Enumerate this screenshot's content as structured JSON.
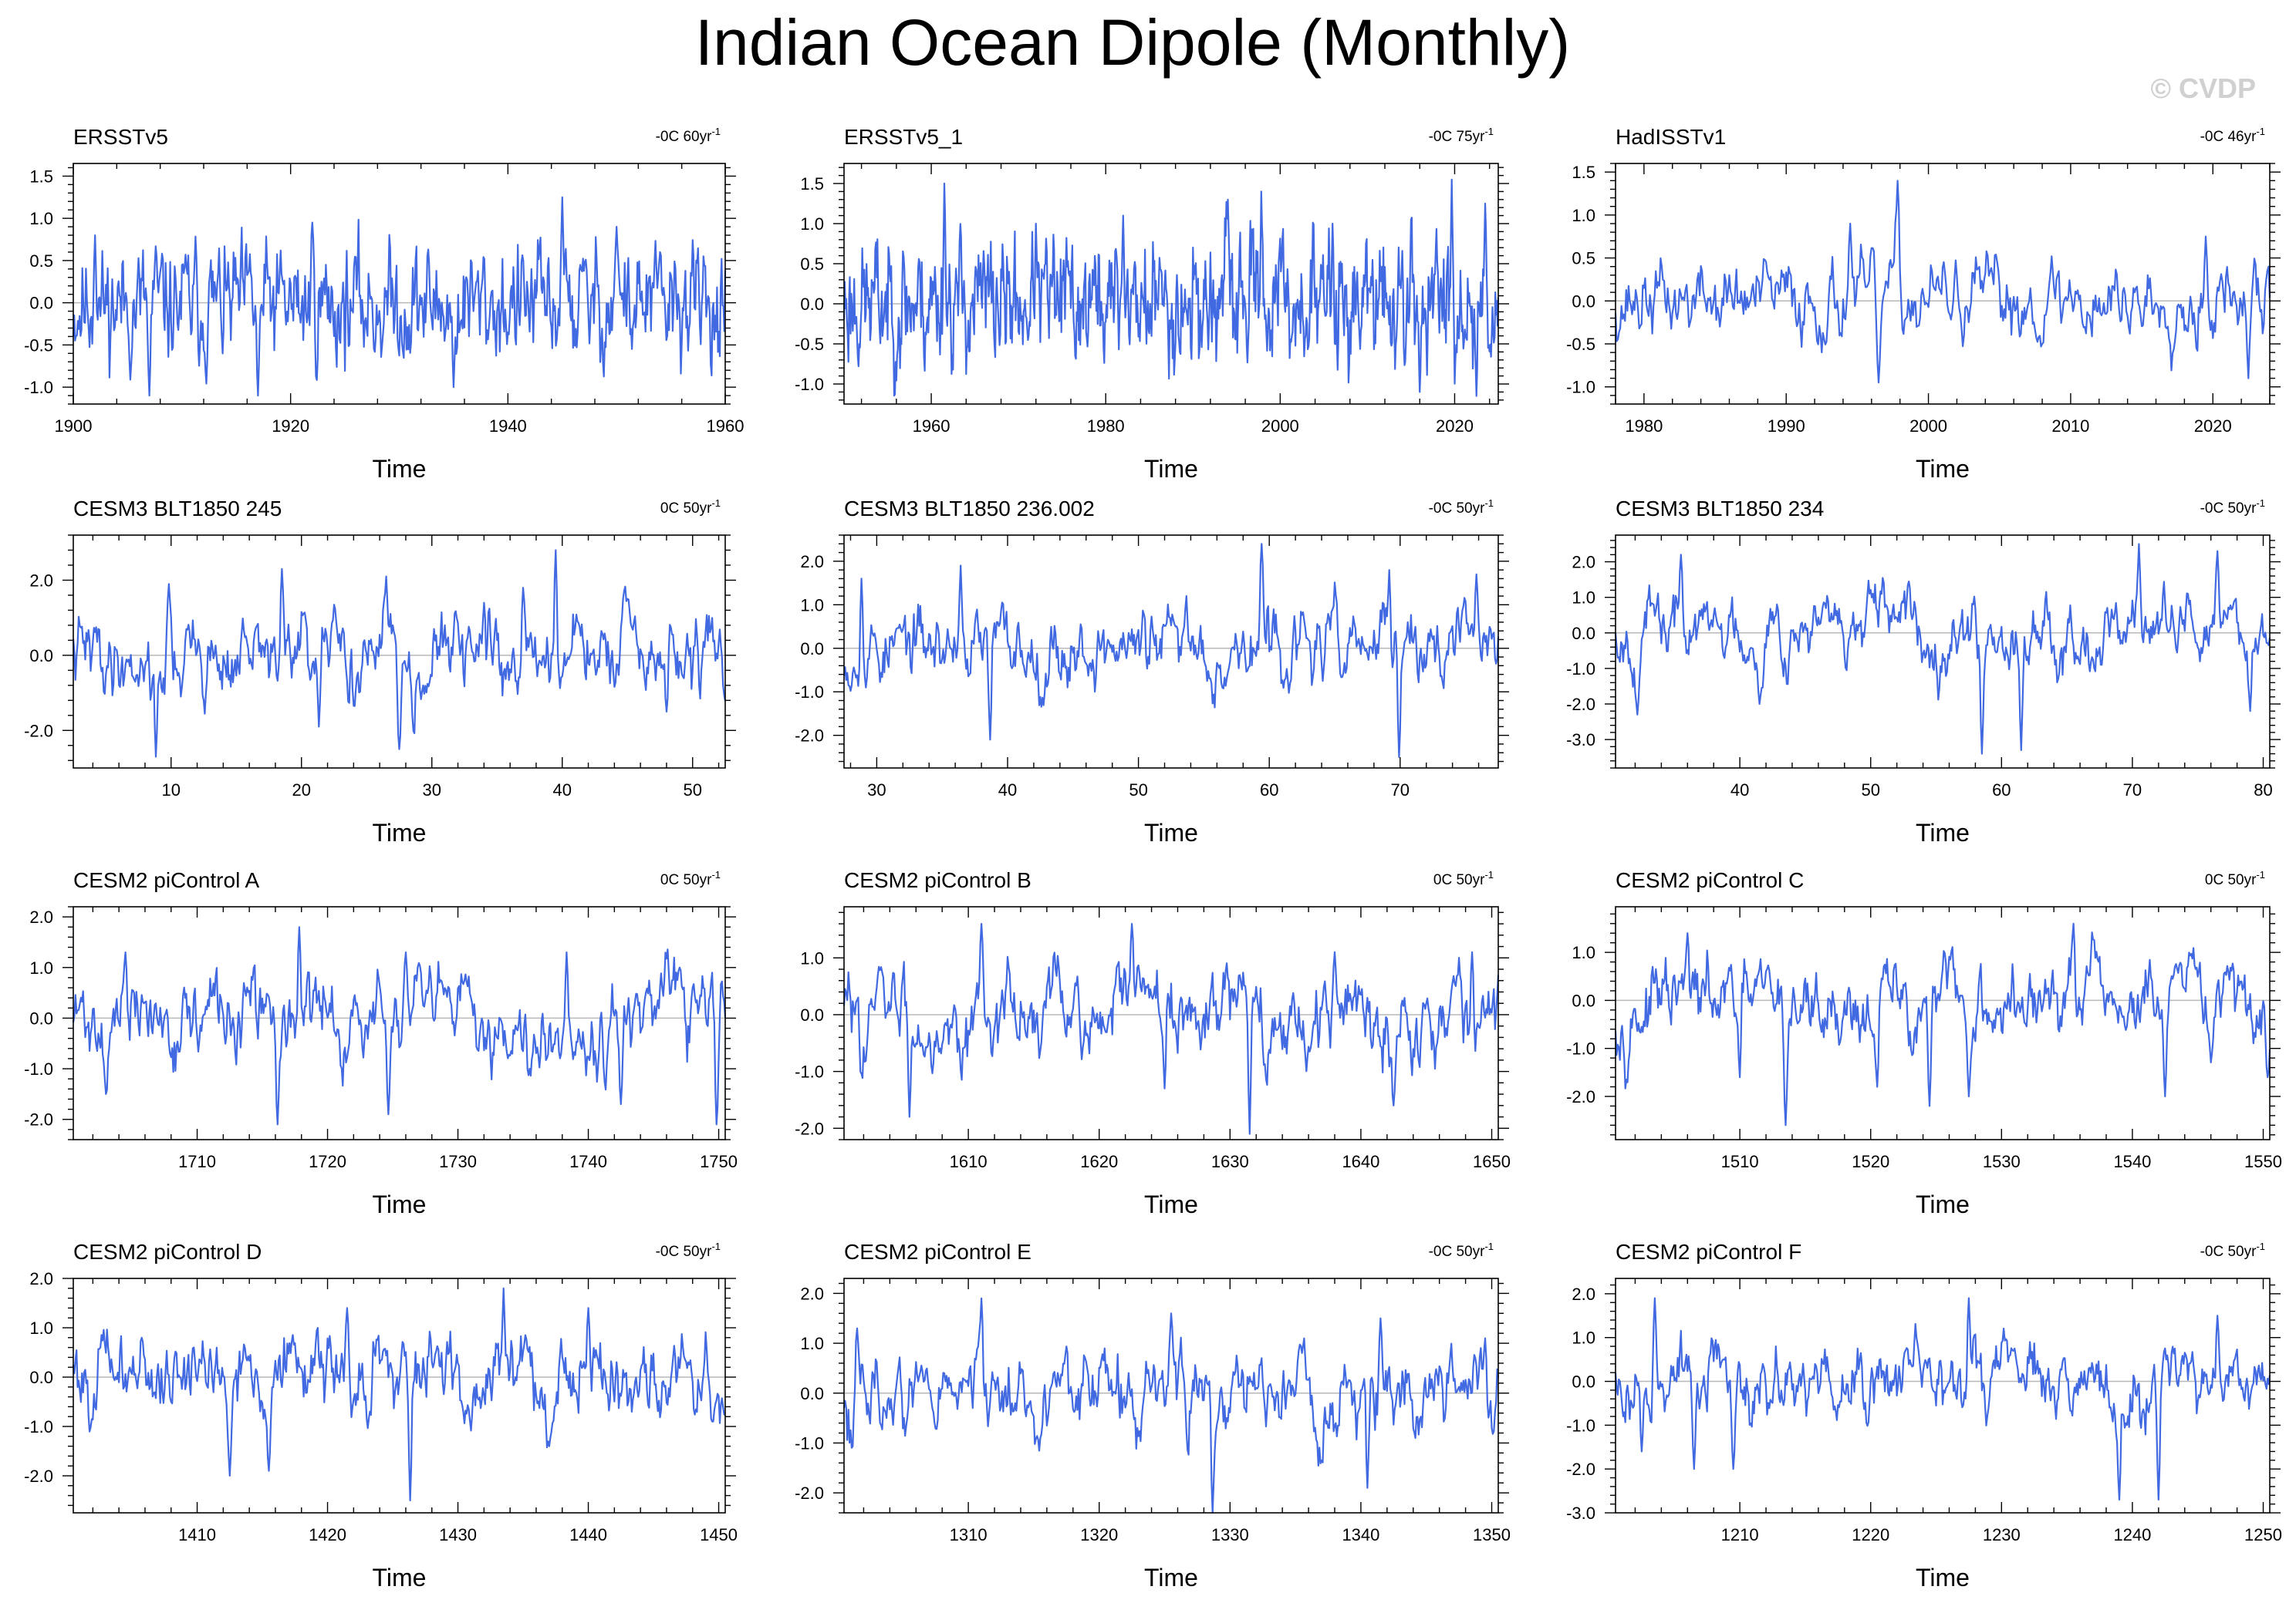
{
  "title": "Indian Ocean Dipole (Monthly)",
  "watermark": "© CVDP",
  "colors": {
    "line": "#4169e1",
    "axis": "#000000",
    "zero": "#b8b8b8",
    "watermark": "#d0d0d0"
  },
  "chart_data": [
    {
      "type": "line",
      "title": "ERSSTv5",
      "annotation": "-0C 60yr",
      "annotation_sup": "-1",
      "xlabel": "Time",
      "xlim": [
        1900,
        1960
      ],
      "xticks": [
        1900,
        1920,
        1940,
        1960
      ],
      "ylim": [
        -1.2,
        1.65
      ],
      "yticks": [
        -1.0,
        -0.5,
        0.0,
        0.5,
        1.0,
        1.5
      ],
      "ytick_labels": [
        "-1.0",
        "-0.5",
        "0.0",
        "0.5",
        "1.0",
        "1.5"
      ],
      "std": 0.35,
      "peaks": [
        [
          1902,
          0.8
        ],
        [
          1907,
          -1.1
        ],
        [
          1917,
          -1.1
        ],
        [
          1922,
          0.95
        ],
        [
          1935,
          -1.0
        ],
        [
          1945,
          1.25
        ],
        [
          1950,
          0.9
        ]
      ],
      "seed": 11,
      "smooth": 0.55
    },
    {
      "type": "line",
      "title": "ERSSTv5_1",
      "annotation": "-0C 75yr",
      "annotation_sup": "-1",
      "xlabel": "Time",
      "xlim": [
        1950,
        2025
      ],
      "xticks": [
        1960,
        1980,
        2000,
        2020
      ],
      "ylim": [
        -1.25,
        1.75
      ],
      "yticks": [
        -1.0,
        -0.5,
        0.0,
        0.5,
        1.0,
        1.5
      ],
      "ytick_labels": [
        "-1.0",
        "-0.5",
        "0.0",
        "0.5",
        "1.0",
        "1.5"
      ],
      "std": 0.4,
      "peaks": [
        [
          1961.5,
          1.5
        ],
        [
          1972,
          1.0
        ],
        [
          1982,
          1.1
        ],
        [
          1994,
          1.3
        ],
        [
          1997.8,
          1.4
        ],
        [
          2006,
          1.0
        ],
        [
          2016,
          -1.1
        ],
        [
          2019.7,
          1.55
        ],
        [
          2023.5,
          1.25
        ],
        [
          2022.5,
          -1.15
        ]
      ],
      "seed": 23,
      "smooth": 0.55
    },
    {
      "type": "line",
      "title": "HadISSTv1",
      "annotation": "-0C 46yr",
      "annotation_sup": "-1",
      "xlabel": "Time",
      "xlim": [
        1978,
        2024
      ],
      "xticks": [
        1980,
        1990,
        2000,
        2010,
        2020
      ],
      "ylim": [
        -1.2,
        1.6
      ],
      "yticks": [
        -1.0,
        -0.5,
        0.0,
        0.5,
        1.0,
        1.5
      ],
      "ytick_labels": [
        "-1.0",
        "-0.5",
        "0.0",
        "0.5",
        "1.0",
        "1.5"
      ],
      "std": 0.25,
      "peaks": [
        [
          1994.5,
          0.9
        ],
        [
          1996.5,
          -0.95
        ],
        [
          1997.8,
          1.4
        ],
        [
          2019.5,
          0.75
        ],
        [
          2022.5,
          -0.9
        ]
      ],
      "seed": 37,
      "smooth": 0.72
    },
    {
      "type": "line",
      "title": "CESM3 BLT1850 245",
      "annotation": "0C 50yr",
      "annotation_sup": "-1",
      "xlabel": "Time",
      "xlim": [
        2.5,
        52.5
      ],
      "xticks": [
        10,
        20,
        30,
        40,
        50
      ],
      "ylim": [
        -3.0,
        3.2
      ],
      "yticks": [
        -2.0,
        0.0,
        2.0
      ],
      "ytick_labels": [
        "-2.0",
        "0.0",
        "2.0"
      ],
      "std": 0.6,
      "peaks": [
        [
          8.8,
          -2.7
        ],
        [
          9.8,
          1.9
        ],
        [
          18.5,
          2.3
        ],
        [
          21.3,
          -1.9
        ],
        [
          26.5,
          2.1
        ],
        [
          27.5,
          -2.5
        ],
        [
          34,
          1.4
        ],
        [
          37,
          1.8
        ],
        [
          39.5,
          2.8
        ],
        [
          45,
          1.5
        ],
        [
          48,
          -1.5
        ]
      ],
      "seed": 41,
      "smooth": 0.78
    },
    {
      "type": "line",
      "title": "CESM3 BLT1850 236.002",
      "annotation": "-0C 50yr",
      "annotation_sup": "-1",
      "xlabel": "Time",
      "xlim": [
        27.5,
        77.5
      ],
      "xticks": [
        30,
        40,
        50,
        60,
        70
      ],
      "ylim": [
        -2.75,
        2.6
      ],
      "yticks": [
        -2.0,
        -1.0,
        0.0,
        1.0,
        2.0
      ],
      "ytick_labels": [
        "-2.0",
        "-1.0",
        "0.0",
        "1.0",
        "2.0"
      ],
      "std": 0.5,
      "peaks": [
        [
          28.8,
          1.6
        ],
        [
          36.4,
          1.9
        ],
        [
          38.7,
          -2.1
        ],
        [
          53.7,
          1.2
        ],
        [
          59.4,
          2.4
        ],
        [
          69.2,
          1.8
        ],
        [
          69.9,
          -2.5
        ],
        [
          75.8,
          1.7
        ]
      ],
      "seed": 53,
      "smooth": 0.78
    },
    {
      "type": "line",
      "title": "CESM3 BLT1850 234",
      "annotation": "-0C 50yr",
      "annotation_sup": "-1",
      "xlabel": "Time",
      "xlim": [
        30.5,
        80.5
      ],
      "xticks": [
        40,
        50,
        60,
        70,
        80
      ],
      "ylim": [
        -3.8,
        2.75
      ],
      "yticks": [
        -3.0,
        -2.0,
        -1.0,
        0.0,
        1.0,
        2.0
      ],
      "ytick_labels": [
        "-3.0",
        "-2.0",
        "-1.0",
        "0.0",
        "1.0",
        "2.0"
      ],
      "std": 0.6,
      "peaks": [
        [
          32.2,
          -2.3
        ],
        [
          35.5,
          2.2
        ],
        [
          41.5,
          -2.0
        ],
        [
          58.5,
          -3.4
        ],
        [
          61.5,
          -3.3
        ],
        [
          70.5,
          2.5
        ],
        [
          76.5,
          2.3
        ],
        [
          79,
          -2.2
        ]
      ],
      "seed": 67,
      "smooth": 0.78
    },
    {
      "type": "line",
      "title": "CESM2 piControl A",
      "annotation": "0C 50yr",
      "annotation_sup": "-1",
      "xlabel": "Time",
      "xlim": [
        1700.5,
        1750.5
      ],
      "xticks": [
        1710,
        1720,
        1730,
        1740,
        1750
      ],
      "ylim": [
        -2.4,
        2.2
      ],
      "yticks": [
        -2.0,
        -1.0,
        0.0,
        1.0,
        2.0
      ],
      "ytick_labels": [
        "-2.0",
        "-1.0",
        "0.0",
        "1.0",
        "2.0"
      ],
      "std": 0.5,
      "peaks": [
        [
          1703,
          -1.5
        ],
        [
          1704.5,
          1.3
        ],
        [
          1716.2,
          -2.1
        ],
        [
          1717.8,
          1.8
        ],
        [
          1724.7,
          -1.9
        ],
        [
          1726,
          1.3
        ],
        [
          1738.3,
          1.3
        ],
        [
          1742.5,
          -1.7
        ],
        [
          1747,
          1.0
        ],
        [
          1749.8,
          -2.1
        ]
      ],
      "seed": 71,
      "smooth": 0.8
    },
    {
      "type": "line",
      "title": "CESM2 piControl B",
      "annotation": "0C 50yr",
      "annotation_sup": "-1",
      "xlabel": "Time",
      "xlim": [
        1600.5,
        1650.5
      ],
      "xticks": [
        1610,
        1620,
        1630,
        1640,
        1650
      ],
      "ylim": [
        -2.2,
        1.9
      ],
      "yticks": [
        -2.0,
        -1.0,
        0.0,
        1.0
      ],
      "ytick_labels": [
        "-2.0",
        "-1.0",
        "0.0",
        "1.0"
      ],
      "std": 0.45,
      "peaks": [
        [
          1605.5,
          -1.8
        ],
        [
          1611,
          1.6
        ],
        [
          1622.5,
          1.6
        ],
        [
          1625,
          -1.3
        ],
        [
          1631.5,
          -2.1
        ],
        [
          1638,
          1.1
        ],
        [
          1642.5,
          -1.6
        ],
        [
          1648.5,
          1.1
        ]
      ],
      "seed": 83,
      "smooth": 0.8
    },
    {
      "type": "line",
      "title": "CESM2 piControl C",
      "annotation": "0C 50yr",
      "annotation_sup": "-1",
      "xlabel": "Time",
      "xlim": [
        1500.5,
        1550.5
      ],
      "xticks": [
        1510,
        1520,
        1530,
        1540,
        1550
      ],
      "ylim": [
        -2.9,
        1.95
      ],
      "yticks": [
        -2.0,
        -1.0,
        0.0,
        1.0
      ],
      "ytick_labels": [
        "-2.0",
        "-1.0",
        "0.0",
        "1.0"
      ],
      "std": 0.5,
      "peaks": [
        [
          1506,
          1.4
        ],
        [
          1510,
          -1.6
        ],
        [
          1513.5,
          -2.6
        ],
        [
          1520.5,
          -1.8
        ],
        [
          1524.5,
          -2.2
        ],
        [
          1527.5,
          -2.0
        ],
        [
          1535.5,
          1.6
        ],
        [
          1542.5,
          -2.0
        ],
        [
          1550.3,
          -1.6
        ]
      ],
      "seed": 97,
      "smooth": 0.8
    },
    {
      "type": "line",
      "title": "CESM2 piControl D",
      "annotation": "-0C 50yr",
      "annotation_sup": "-1",
      "xlabel": "Time",
      "xlim": [
        1400.5,
        1450.5
      ],
      "xticks": [
        1410,
        1420,
        1430,
        1440,
        1450
      ],
      "ylim": [
        -2.75,
        2.0
      ],
      "yticks": [
        -2.0,
        -1.0,
        0.0,
        1.0,
        2.0
      ],
      "ytick_labels": [
        "-2.0",
        "-1.0",
        "0.0",
        "1.0",
        "2.0"
      ],
      "std": 0.45,
      "peaks": [
        [
          1412.5,
          -2.0
        ],
        [
          1415.5,
          -1.9
        ],
        [
          1421.5,
          1.4
        ],
        [
          1426.3,
          -2.5
        ],
        [
          1433.5,
          1.8
        ],
        [
          1437,
          -1.4
        ],
        [
          1440,
          1.4
        ],
        [
          1449.5,
          -0.9
        ]
      ],
      "seed": 101,
      "smooth": 0.8
    },
    {
      "type": "line",
      "title": "CESM2 piControl E",
      "annotation": "-0C 50yr",
      "annotation_sup": "-1",
      "xlabel": "Time",
      "xlim": [
        1300.5,
        1350.5
      ],
      "xticks": [
        1310,
        1320,
        1330,
        1340,
        1350
      ],
      "ylim": [
        -2.4,
        2.3
      ],
      "yticks": [
        -2.0,
        -1.0,
        0.0,
        1.0,
        2.0
      ],
      "ytick_labels": [
        "-2.0",
        "-1.0",
        "0.0",
        "1.0",
        "2.0"
      ],
      "std": 0.45,
      "peaks": [
        [
          1301.5,
          1.3
        ],
        [
          1311,
          1.9
        ],
        [
          1325.5,
          1.6
        ],
        [
          1328.7,
          -2.4
        ],
        [
          1340.5,
          -1.9
        ],
        [
          1341.5,
          1.5
        ],
        [
          1349.5,
          1.1
        ]
      ],
      "seed": 113,
      "smooth": 0.8
    },
    {
      "type": "line",
      "title": "CESM2 piControl F",
      "annotation": "-0C 50yr",
      "annotation_sup": "-1",
      "xlabel": "Time",
      "xlim": [
        1200.5,
        1250.5
      ],
      "xticks": [
        1210,
        1220,
        1230,
        1240,
        1250
      ],
      "ylim": [
        -3.0,
        2.35
      ],
      "yticks": [
        -3.0,
        -2.0,
        -1.0,
        0.0,
        1.0,
        2.0
      ],
      "ytick_labels": [
        "-3.0",
        "-2.0",
        "-1.0",
        "0.0",
        "1.0",
        "2.0"
      ],
      "std": 0.45,
      "peaks": [
        [
          1202.5,
          -1.6
        ],
        [
          1203.5,
          1.9
        ],
        [
          1206.5,
          -2.0
        ],
        [
          1209.5,
          -2.0
        ],
        [
          1227.5,
          1.9
        ],
        [
          1239,
          -2.7
        ],
        [
          1242,
          -2.7
        ],
        [
          1246.5,
          1.5
        ]
      ],
      "seed": 127,
      "smooth": 0.8
    }
  ]
}
